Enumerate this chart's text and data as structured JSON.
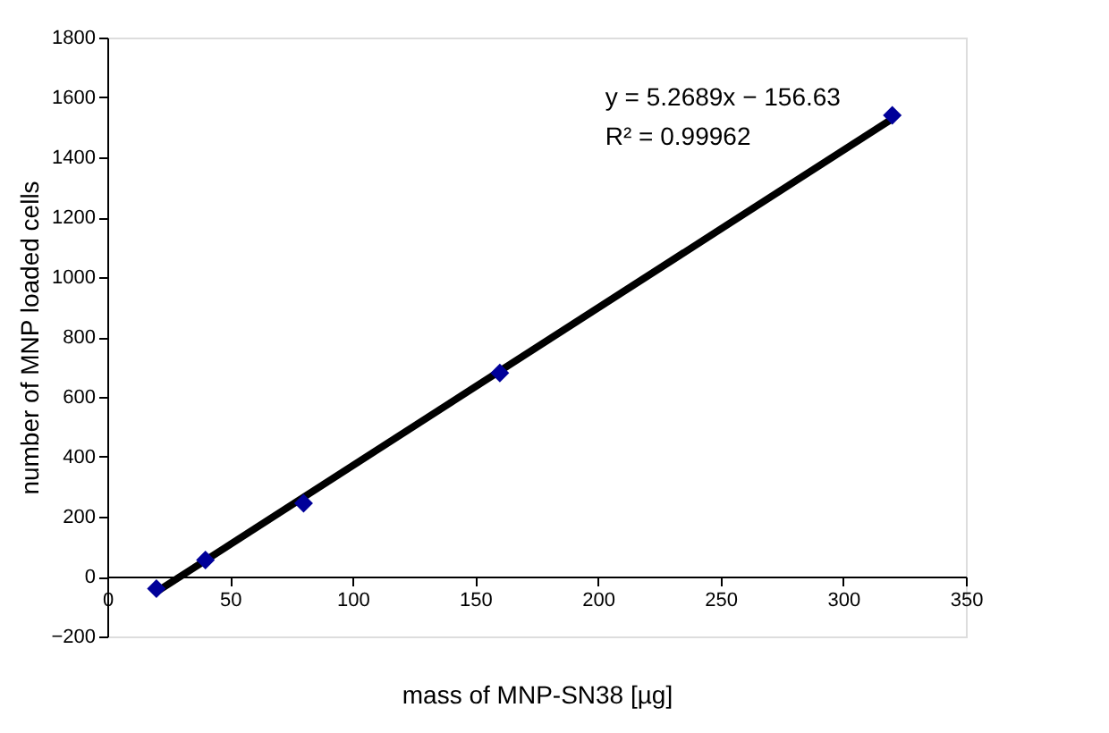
{
  "chart_data": {
    "type": "scatter",
    "xlabel": "mass of MNP-SN38 [µg]",
    "ylabel": "number of MNP loaded cells",
    "series": [
      {
        "color": "#000099",
        "marker": "diamond",
        "x": [
          20,
          40,
          80,
          160,
          320
        ],
        "values": [
          -40,
          55,
          245,
          680,
          1540
        ]
      },
      {
        "type": "line",
        "color": "#000000",
        "x": [
          20,
          320
        ],
        "values": [
          -51,
          1529
        ]
      }
    ],
    "xlim": [
      0,
      350
    ],
    "xticks": [
      0,
      50,
      100,
      150,
      200,
      250,
      300,
      350
    ],
    "ylim": [
      -200,
      1800
    ],
    "yticks": [
      {
        "value": -200,
        "label": "−200"
      },
      0,
      200,
      400,
      600,
      800,
      1000,
      1200,
      1400,
      1600,
      1800
    ],
    "grid": false,
    "annotations": [
      "y = 5.2689x − 156.63",
      "R² = 0.99962"
    ]
  }
}
